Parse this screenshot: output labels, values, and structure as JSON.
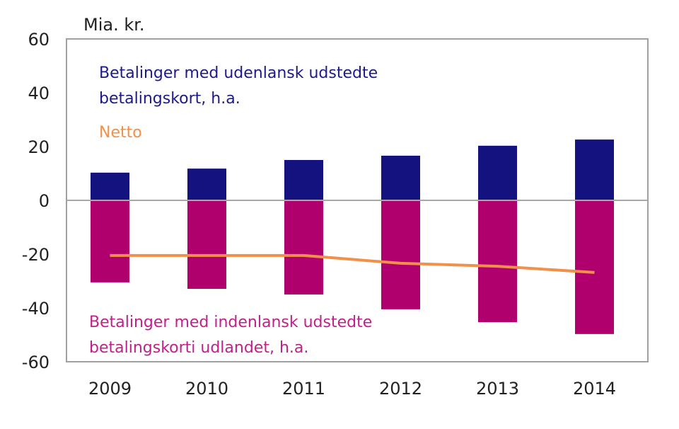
{
  "chart_data": {
    "type": "bar",
    "unit_label": "Mia. kr.",
    "categories": [
      "2009",
      "2010",
      "2011",
      "2012",
      "2013",
      "2014"
    ],
    "ylim": [
      -60,
      60
    ],
    "yticks": [
      60,
      40,
      20,
      0,
      -20,
      -40,
      -60
    ],
    "yticks_labels": [
      "60",
      "40",
      "20",
      "0",
      "-20",
      "-40",
      "-60"
    ],
    "grid": false,
    "series": [
      {
        "name": "Betalinger med udenlansk udstedte betalingskort, h.a.",
        "label_lines": [
          "Betalinger med udenlansk udstedte",
          "betalingskort, h.a."
        ],
        "type": "bar",
        "color": "#14127e",
        "values": [
          10.3,
          11.8,
          15.0,
          16.6,
          20.3,
          22.6
        ]
      },
      {
        "name": "Betalinger med indenlansk udstedte betalingskorti udlandet, h.a.",
        "label_lines": [
          "Betalinger med indenlansk udstedte",
          "betalingskorti udlandet, h.a."
        ],
        "type": "bar",
        "color": "#b0006e",
        "values": [
          -30.5,
          -32.9,
          -35.0,
          -40.5,
          -45.3,
          -49.7
        ]
      },
      {
        "name": "Netto",
        "label_lines": [
          "Netto"
        ],
        "type": "line",
        "color": "#f0904a",
        "values": [
          -20.5,
          -20.5,
          -20.5,
          -23.4,
          -24.5,
          -26.8
        ]
      }
    ]
  }
}
